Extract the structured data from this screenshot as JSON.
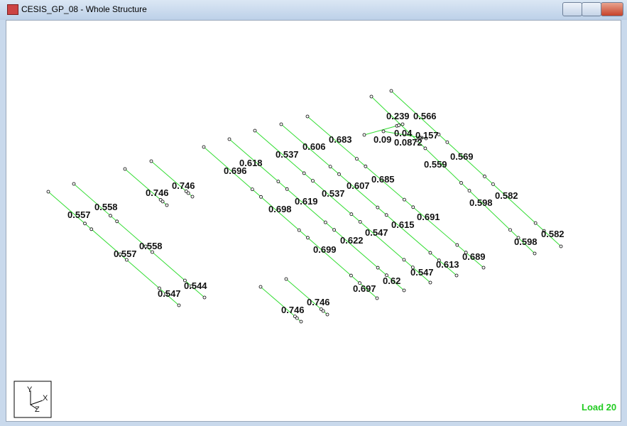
{
  "window": {
    "title": "CESIS_GP_08 - Whole Structure"
  },
  "labels": [
    0.558,
    0.557,
    0.558,
    0.557,
    0.544,
    0.547,
    0.746,
    0.746,
    0.696,
    0.618,
    0.537,
    0.606,
    0.683,
    0.698,
    0.619,
    0.537,
    0.607,
    0.685,
    0.699,
    0.622,
    0.547,
    0.615,
    0.691,
    0.697,
    0.62,
    0.547,
    0.613,
    0.689,
    0.239,
    0.566,
    0.04,
    0.157,
    0.09,
    0.0872,
    0.569,
    0.559,
    0.582,
    0.598,
    0.582,
    0.598,
    0.746,
    0.746
  ],
  "triad": {
    "y": "Y",
    "x": "X",
    "z": "Z"
  },
  "status": "Load 20"
}
